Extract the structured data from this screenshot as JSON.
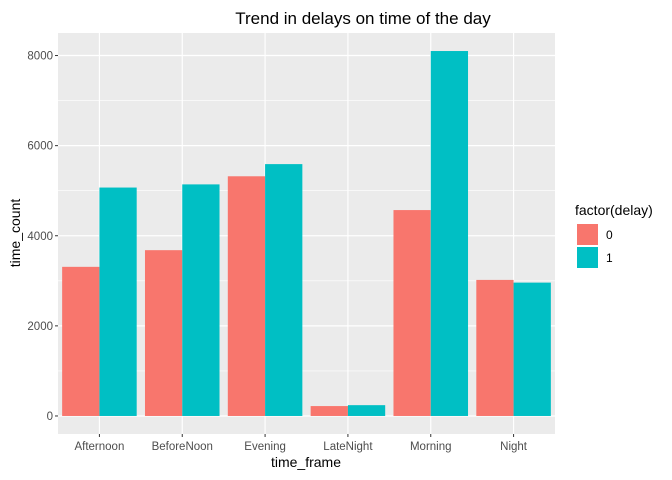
{
  "chart_data": {
    "type": "bar",
    "title": "Trend in delays on time of the day",
    "xlabel": "time_frame",
    "ylabel": "time_count",
    "categories": [
      "Afternoon",
      "BeforeNoon",
      "Evening",
      "LateNight",
      "Morning",
      "Night"
    ],
    "series": [
      {
        "name": "0",
        "color": "#F8766D",
        "values": [
          3310,
          3680,
          5320,
          220,
          4570,
          3020
        ]
      },
      {
        "name": "1",
        "color": "#00BFC4",
        "values": [
          5070,
          5140,
          5590,
          240,
          8100,
          2960
        ]
      }
    ],
    "ylim": [
      -400,
      8500
    ],
    "yticks": [
      0,
      2000,
      4000,
      6000,
      8000
    ],
    "grid": true,
    "legend": {
      "title": "factor(delay)",
      "position": "right"
    }
  }
}
